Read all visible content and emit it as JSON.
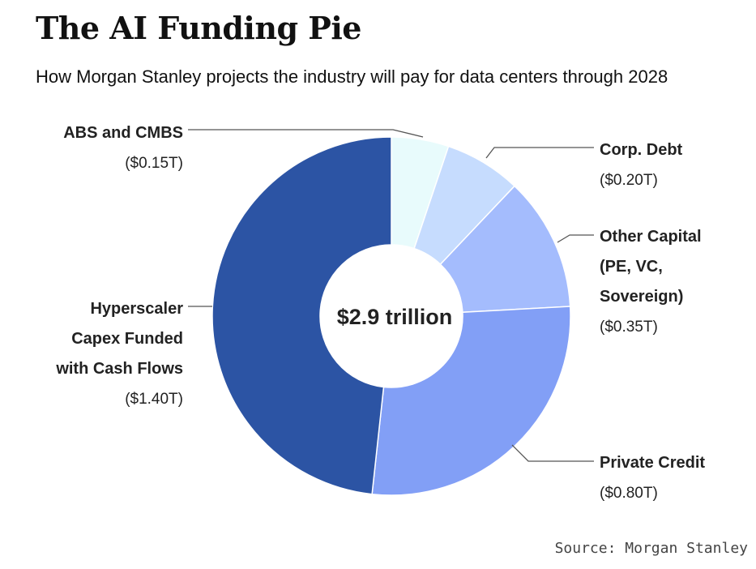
{
  "chart_data": {
    "type": "pie",
    "title": "The AI Funding Pie",
    "subtitle": "How Morgan Stanley projects the industry will pay for data centers through 2028",
    "center_label": "$2.9 trillion",
    "total": 2.9,
    "source": "Source: Morgan Stanley",
    "slices": [
      {
        "name_lines": [
          "ABS and CMBS"
        ],
        "value": 0.15,
        "value_label": "($0.15T)",
        "color": "#e8fbfc"
      },
      {
        "name_lines": [
          "Corp. Debt"
        ],
        "value": 0.2,
        "value_label": "($0.20T)",
        "color": "#c6dcfe"
      },
      {
        "name_lines": [
          "Other Capital",
          "(PE, VC,",
          "Sovereign)"
        ],
        "value": 0.35,
        "value_label": "($0.35T)",
        "color": "#a4bcfd"
      },
      {
        "name_lines": [
          "Private Credit"
        ],
        "value": 0.8,
        "value_label": "($0.80T)",
        "color": "#829ff6"
      },
      {
        "name_lines": [
          "Hyperscaler",
          "Capex Funded",
          "with Cash Flows"
        ],
        "value": 1.4,
        "value_label": "($1.40T)",
        "color": "#2c54a4"
      }
    ]
  }
}
